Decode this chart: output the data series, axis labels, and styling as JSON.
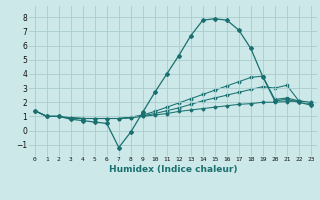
{
  "xlabel": "Humidex (Indice chaleur)",
  "ylabel": "",
  "bg_color": "#cce8e8",
  "grid_color": "#aacccc",
  "line_color": "#1a7070",
  "xlim": [
    -0.5,
    23.5
  ],
  "ylim": [
    -1.8,
    8.8
  ],
  "xticks": [
    0,
    1,
    2,
    3,
    4,
    5,
    6,
    7,
    8,
    9,
    10,
    11,
    12,
    13,
    14,
    15,
    16,
    17,
    18,
    19,
    20,
    21,
    22,
    23
  ],
  "yticks": [
    -1,
    0,
    1,
    2,
    3,
    4,
    5,
    6,
    7,
    8
  ],
  "lines": [
    [
      1.4,
      1.0,
      1.0,
      0.8,
      0.7,
      0.6,
      0.5,
      -1.2,
      -0.1,
      1.3,
      2.7,
      4.0,
      5.3,
      6.7,
      7.8,
      7.9,
      7.8,
      7.1,
      5.8,
      3.8,
      2.1,
      2.2,
      2.0,
      1.8
    ],
    [
      1.4,
      1.0,
      1.0,
      0.9,
      0.85,
      0.85,
      0.85,
      0.85,
      0.9,
      1.0,
      1.1,
      1.2,
      1.35,
      1.45,
      1.55,
      1.65,
      1.75,
      1.85,
      1.9,
      2.0,
      2.0,
      2.05,
      2.1,
      2.0
    ],
    [
      1.4,
      1.0,
      1.0,
      0.9,
      0.85,
      0.85,
      0.85,
      0.85,
      0.9,
      1.05,
      1.2,
      1.4,
      1.6,
      1.85,
      2.1,
      2.3,
      2.5,
      2.7,
      2.9,
      3.1,
      3.0,
      3.2,
      2.1,
      1.9
    ],
    [
      1.4,
      1.0,
      1.0,
      0.9,
      0.85,
      0.85,
      0.85,
      0.85,
      0.95,
      1.1,
      1.35,
      1.65,
      1.95,
      2.25,
      2.55,
      2.85,
      3.15,
      3.45,
      3.75,
      3.85,
      2.2,
      2.3,
      2.1,
      1.9
    ]
  ]
}
